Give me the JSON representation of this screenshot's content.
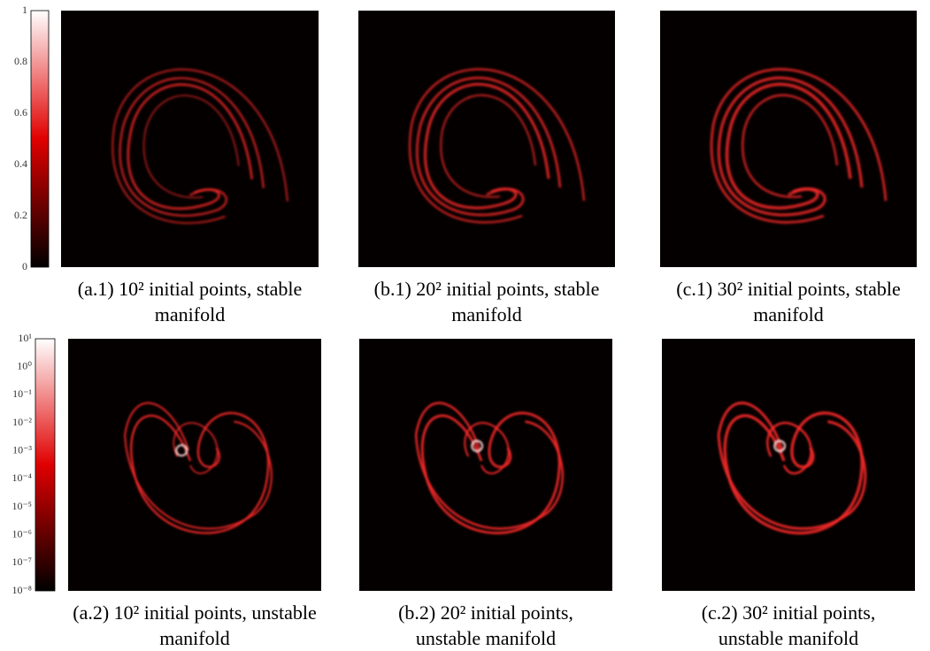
{
  "figure": {
    "colorbars": [
      {
        "ticks": [
          "0",
          "0.2",
          "0.4",
          "0.6",
          "0.8",
          "1"
        ]
      },
      {
        "ticks": [
          "10⁻⁸",
          "10⁻⁷",
          "10⁻⁶",
          "10⁻⁵",
          "10⁻⁴",
          "10⁻³",
          "10⁻²",
          "10⁻¹",
          "10⁰",
          "10¹"
        ]
      }
    ],
    "panels": [
      {
        "caption": [
          "(a.1) 10² initial points, stable",
          "manifold"
        ]
      },
      {
        "caption": [
          "(b.1) 20² initial points, stable",
          "manifold"
        ]
      },
      {
        "caption": [
          "(c.1) 30² initial points, stable",
          "manifold"
        ]
      },
      {
        "caption": [
          "(a.2) 10² initial points, unstable",
          "manifold"
        ]
      },
      {
        "caption": [
          "(b.2) 20² initial points,",
          "unstable manifold"
        ]
      },
      {
        "caption": [
          "(c.2) 30² initial points,",
          "unstable manifold"
        ]
      }
    ]
  }
}
